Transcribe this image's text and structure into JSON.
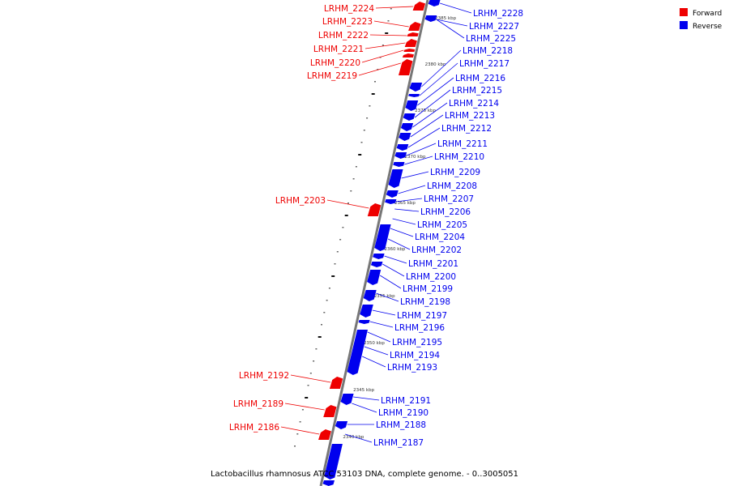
{
  "colors": {
    "forward": "#ee0000",
    "reverse": "#0000ee",
    "backbone": "#777777"
  },
  "legend": [
    {
      "label": "Forward",
      "color": "#ee0000"
    },
    {
      "label": "Reverse",
      "color": "#0000ee"
    }
  ],
  "caption": "Lactobacillus rhamnosus ATCC 53103 DNA, complete genome. - 0..3005051",
  "ticks": [
    "2385 kbp",
    "2380 kbp",
    "2375 kbp",
    "2370 kbp",
    "2365 kbp",
    "2360 kbp",
    "2355 kbp",
    "2350 kbp",
    "2345 kbp",
    "2340 kbp"
  ],
  "forward_genes": [
    "LRHM_2224",
    "LRHM_2223",
    "LRHM_2222",
    "LRHM_2221",
    "LRHM_2220",
    "LRHM_2219",
    "LRHM_2203",
    "LRHM_2192",
    "LRHM_2189",
    "LRHM_2186"
  ],
  "reverse_genes": [
    "LRHM_2228",
    "LRHM_2227",
    "LRHM_2225",
    "LRHM_2218",
    "LRHM_2217",
    "LRHM_2216",
    "LRHM_2215",
    "LRHM_2214",
    "LRHM_2213",
    "LRHM_2212",
    "LRHM_2211",
    "LRHM_2210",
    "LRHM_2209",
    "LRHM_2208",
    "LRHM_2207",
    "LRHM_2206",
    "LRHM_2205",
    "LRHM_2204",
    "LRHM_2202",
    "LRHM_2201",
    "LRHM_2200",
    "LRHM_2199",
    "LRHM_2198",
    "LRHM_2197",
    "LRHM_2196",
    "LRHM_2195",
    "LRHM_2194",
    "LRHM_2193",
    "LRHM_2191",
    "LRHM_2190",
    "LRHM_2188",
    "LRHM_2187"
  ]
}
